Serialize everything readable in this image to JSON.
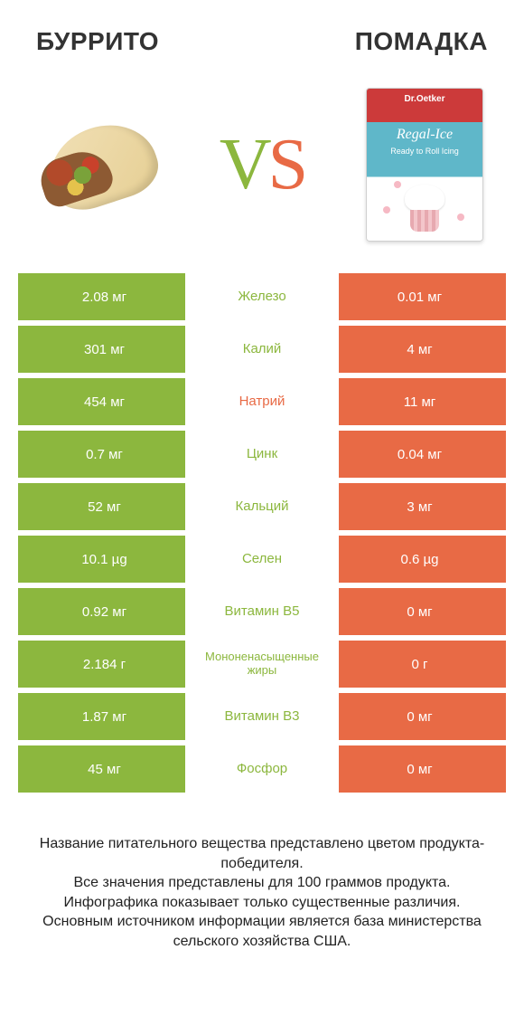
{
  "colors": {
    "green": "#8cb73e",
    "orange": "#e86a45",
    "text": "#333333"
  },
  "header": {
    "left_title": "БУРРИТО",
    "right_title": "ПОМАДКА"
  },
  "hero": {
    "vs_v": "V",
    "vs_s": "S",
    "fondant_brand": "Dr.Oetker",
    "fondant_name": "Regal-Ice",
    "fondant_sub": "Ready to Roll Icing"
  },
  "table": {
    "rows": [
      {
        "left": "2.08 мг",
        "label": "Железо",
        "right": "0.01 мг",
        "winner": "left",
        "small": false
      },
      {
        "left": "301 мг",
        "label": "Калий",
        "right": "4 мг",
        "winner": "left",
        "small": false
      },
      {
        "left": "454 мг",
        "label": "Натрий",
        "right": "11 мг",
        "winner": "right",
        "small": false
      },
      {
        "left": "0.7 мг",
        "label": "Цинк",
        "right": "0.04 мг",
        "winner": "left",
        "small": false
      },
      {
        "left": "52 мг",
        "label": "Кальций",
        "right": "3 мг",
        "winner": "left",
        "small": false
      },
      {
        "left": "10.1 µg",
        "label": "Селен",
        "right": "0.6 µg",
        "winner": "left",
        "small": false
      },
      {
        "left": "0.92 мг",
        "label": "Витамин B5",
        "right": "0 мг",
        "winner": "left",
        "small": false
      },
      {
        "left": "2.184 г",
        "label": "Мононенасыщенные жиры",
        "right": "0 г",
        "winner": "left",
        "small": true
      },
      {
        "left": "1.87 мг",
        "label": "Витамин B3",
        "right": "0 мг",
        "winner": "left",
        "small": false
      },
      {
        "left": "45 мг",
        "label": "Фосфор",
        "right": "0 мг",
        "winner": "left",
        "small": false
      }
    ]
  },
  "footer": {
    "line1": "Название питательного вещества представлено цветом продукта-победителя.",
    "line2": "Все значения представлены для 100 граммов продукта.",
    "line3": "Инфографика показывает только существенные различия.",
    "line4": "Основным источником информации является база министерства сельского хозяйства США."
  }
}
